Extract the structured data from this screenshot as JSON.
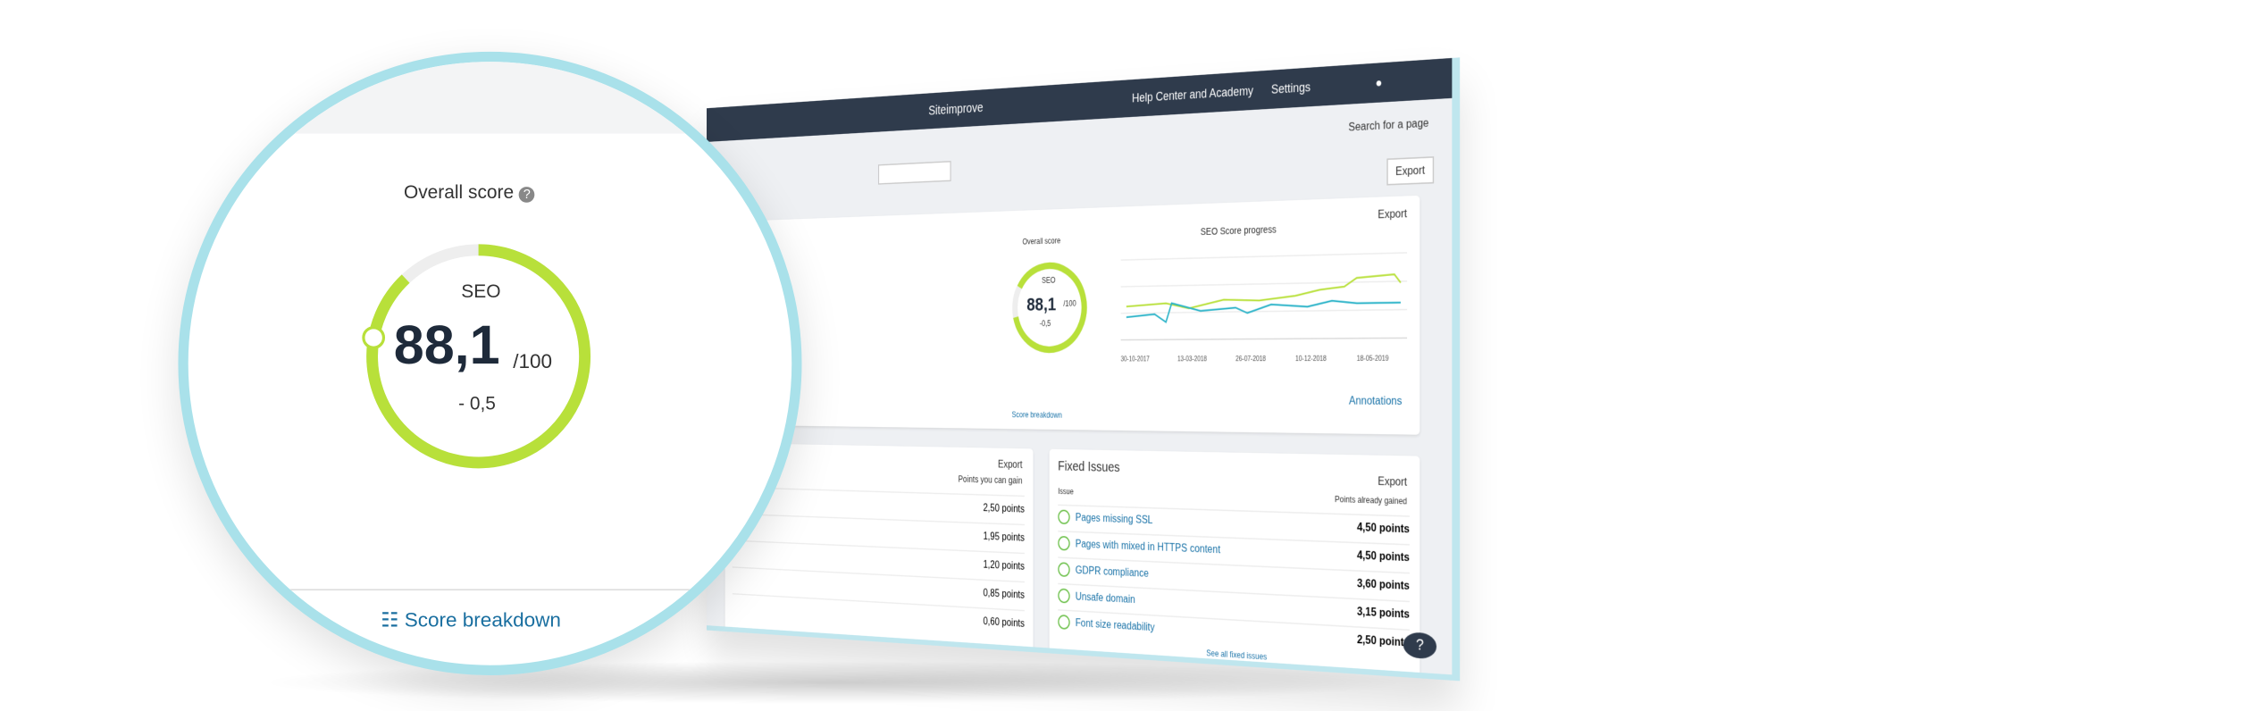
{
  "zoom": {
    "title": "Overall score",
    "label": "SEO",
    "score": "88,1",
    "max": "/100",
    "change": "- 0,5",
    "link": "Score breakdown"
  },
  "header": {
    "app_name": "Siteimprove",
    "help": "Help Center and Academy",
    "settings": "Settings",
    "search": "Search for a page",
    "export": "Export"
  },
  "overview": {
    "score_title": "Overall score",
    "label": "SEO",
    "score": "88,1",
    "max": "/100",
    "change": "-0,5",
    "chart_title": "SEO Score progress",
    "export": "Export",
    "annotations": "Annotations",
    "breakdown": "Score breakdown",
    "dates": [
      "30-10-2017",
      "13-03-2018",
      "26-07-2018",
      "10-12-2018",
      "18-05-2019"
    ]
  },
  "potential": {
    "export": "Export",
    "column": "Points you can gain",
    "rows": [
      "2,50 points",
      "1,95 points",
      "1,20 points",
      "0,85 points",
      "0,60 points"
    ]
  },
  "fixed": {
    "title": "Fixed Issues",
    "export": "Export",
    "col_issue": "Issue",
    "col_points": "Points already gained",
    "rows": [
      [
        "Pages missing SSL",
        "4,50 points"
      ],
      [
        "Pages with mixed in HTTPS content",
        "4,50 points"
      ],
      [
        "GDPR compliance",
        "3,60 points"
      ],
      [
        "Unsafe domain",
        "3,15 points"
      ],
      [
        "Font size readability",
        "2,50 points"
      ]
    ],
    "link": "See all fixed issues"
  }
}
